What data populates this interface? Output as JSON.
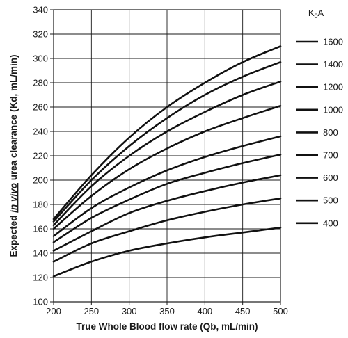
{
  "chart_data": {
    "type": "line",
    "title": "",
    "xlabel": "True Whole Blood flow rate (Qb, mL/min)",
    "ylabel_prefix": "Expected ",
    "ylabel_emphasis": "in vivo",
    "ylabel_suffix": " urea clearance (Kd, mL/min)",
    "xlim": [
      200,
      500
    ],
    "ylim": [
      100,
      340
    ],
    "x_ticks": [
      "200",
      "250",
      "300",
      "350",
      "400",
      "450",
      "500"
    ],
    "y_ticks": [
      "100",
      "120",
      "140",
      "160",
      "180",
      "200",
      "220",
      "240",
      "260",
      "280",
      "300",
      "320",
      "340"
    ],
    "grid": true,
    "legend_title_base": "K",
    "legend_title_sub": "0",
    "legend_title_tail": "A",
    "legend_position": "right",
    "x": [
      200,
      250,
      300,
      350,
      400,
      450,
      500
    ],
    "series": [
      {
        "name": "1600",
        "values": [
          168,
          204,
          235,
          260,
          280,
          297,
          310
        ]
      },
      {
        "name": "1400",
        "values": [
          166,
          200,
          228,
          251,
          270,
          285,
          297
        ]
      },
      {
        "name": "1200",
        "values": [
          163,
          195,
          220,
          240,
          256,
          270,
          281
        ]
      },
      {
        "name": "1000",
        "values": [
          160,
          187,
          209,
          226,
          240,
          251,
          261
        ]
      },
      {
        "name": "800",
        "values": [
          154,
          177,
          194,
          208,
          219,
          228,
          236
        ]
      },
      {
        "name": "700",
        "values": [
          149,
          169,
          184,
          197,
          206,
          214,
          221
        ]
      },
      {
        "name": "600",
        "values": [
          142,
          158,
          173,
          183,
          191,
          198,
          204
        ]
      },
      {
        "name": "500",
        "values": [
          133,
          148,
          158,
          167,
          174,
          180,
          185
        ]
      },
      {
        "name": "400",
        "values": [
          121,
          133,
          142,
          148,
          153,
          157,
          161
        ]
      }
    ]
  }
}
